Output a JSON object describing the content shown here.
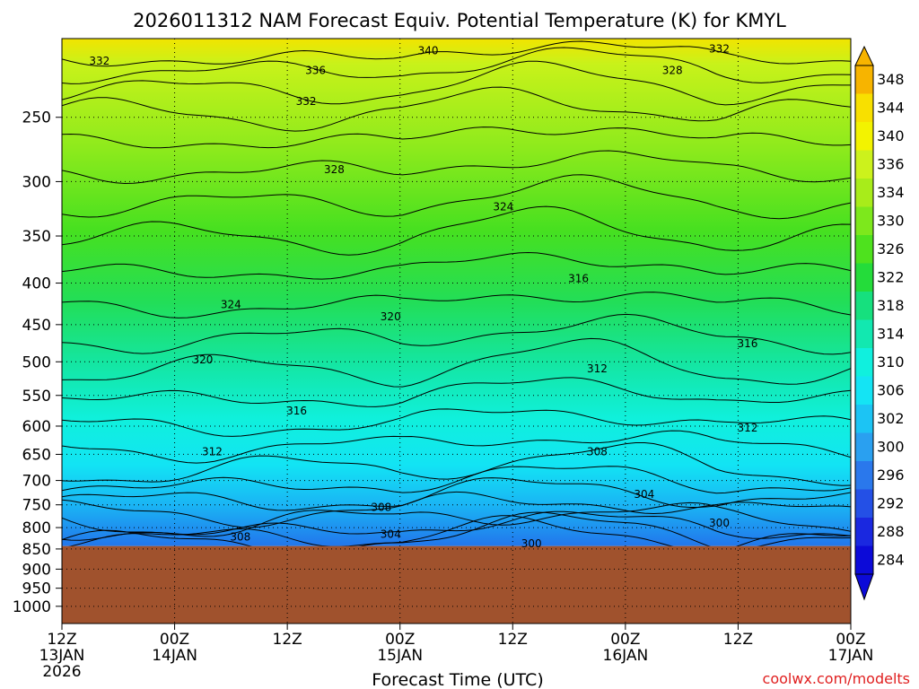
{
  "chart_data": {
    "type": "heatmap",
    "title": "2026011312 NAM Forecast Equiv. Potential Temperature (K) for KMYL",
    "xlabel": "Forecast Time (UTC)",
    "credit": "coolwx.com/modelts",
    "x_ticks": [
      {
        "line1": "12Z",
        "line2": "13JAN",
        "line3": "2026"
      },
      {
        "line1": "00Z",
        "line2": "14JAN",
        "line3": ""
      },
      {
        "line1": "12Z",
        "line2": "",
        "line3": ""
      },
      {
        "line1": "00Z",
        "line2": "15JAN",
        "line3": ""
      },
      {
        "line1": "12Z",
        "line2": "",
        "line3": ""
      },
      {
        "line1": "00Z",
        "line2": "16JAN",
        "line3": ""
      },
      {
        "line1": "12Z",
        "line2": "",
        "line3": ""
      },
      {
        "line1": "00Z",
        "line2": "17JAN",
        "line3": ""
      }
    ],
    "x_range_hours": [
      0,
      84
    ],
    "y_axis": "pressure",
    "y_range": [
      1050,
      200
    ],
    "y_ticks": [
      "250",
      "300",
      "350",
      "400",
      "450",
      "500",
      "550",
      "600",
      "650",
      "700",
      "750",
      "800",
      "850",
      "900",
      "950",
      "1000"
    ],
    "surface_pressure": 843,
    "grid": true,
    "colorbar": {
      "placement": "right",
      "labels": [
        "348",
        "344",
        "340",
        "336",
        "334",
        "330",
        "326",
        "322",
        "318",
        "314",
        "310",
        "306",
        "302",
        "300",
        "296",
        "292",
        "288",
        "284"
      ],
      "colors": [
        "#f7b400",
        "#f8e000",
        "#f3f300",
        "#ccf21c",
        "#a8ec1a",
        "#7de81c",
        "#4ee21e",
        "#24dc3a",
        "#16e07e",
        "#12e8b0",
        "#10f0de",
        "#14e4f4",
        "#1cc4f4",
        "#2aa0f0",
        "#2a78ec",
        "#2450e6",
        "#1a28e0",
        "#0c0ad8"
      ]
    },
    "contour_labels": [
      {
        "text": "332",
        "hour": 4,
        "p": 213
      },
      {
        "text": "340",
        "hour": 39,
        "p": 207
      },
      {
        "text": "332",
        "hour": 70,
        "p": 206
      },
      {
        "text": "336",
        "hour": 27,
        "p": 219
      },
      {
        "text": "328",
        "hour": 65,
        "p": 219
      },
      {
        "text": "332",
        "hour": 26,
        "p": 239
      },
      {
        "text": "328",
        "hour": 29,
        "p": 290
      },
      {
        "text": "324",
        "hour": 47,
        "p": 322
      },
      {
        "text": "316",
        "hour": 55,
        "p": 395
      },
      {
        "text": "324",
        "hour": 18,
        "p": 425
      },
      {
        "text": "320",
        "hour": 35,
        "p": 440
      },
      {
        "text": "316",
        "hour": 73,
        "p": 475
      },
      {
        "text": "320",
        "hour": 15,
        "p": 497
      },
      {
        "text": "312",
        "hour": 57,
        "p": 510
      },
      {
        "text": "316",
        "hour": 25,
        "p": 575
      },
      {
        "text": "312",
        "hour": 73,
        "p": 603
      },
      {
        "text": "312",
        "hour": 16,
        "p": 645
      },
      {
        "text": "308",
        "hour": 57,
        "p": 645
      },
      {
        "text": "304",
        "hour": 62,
        "p": 728
      },
      {
        "text": "308",
        "hour": 34,
        "p": 755
      },
      {
        "text": "300",
        "hour": 70,
        "p": 790
      },
      {
        "text": "304",
        "hour": 35,
        "p": 815
      },
      {
        "text": "308",
        "hour": 19,
        "p": 822
      },
      {
        "text": "300",
        "hour": 50,
        "p": 837
      }
    ]
  }
}
